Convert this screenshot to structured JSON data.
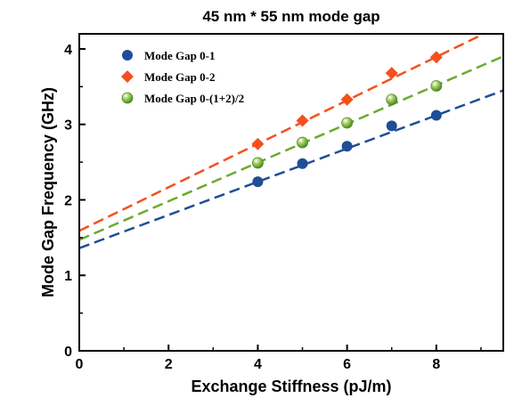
{
  "chart_data": {
    "type": "scatter",
    "title": "45 nm * 55 nm mode gap",
    "xlabel": "Exchange Stiffness (pJ/m)",
    "ylabel": "Mode Gap Frequency (GHz)",
    "xlim": [
      0,
      9.5
    ],
    "ylim": [
      0,
      4.2
    ],
    "xticks": [
      0,
      2,
      4,
      6,
      8
    ],
    "yticks": [
      0,
      1,
      2,
      3,
      4
    ],
    "grid": false,
    "legend_position": "top-left",
    "series": [
      {
        "name": "Mode Gap 0-1",
        "marker": "circle",
        "color": "#1f4e96",
        "x": [
          4,
          5,
          6,
          7,
          8
        ],
        "y": [
          2.24,
          2.48,
          2.71,
          2.98,
          3.12
        ],
        "fit": {
          "intercept": 1.36,
          "slope": 0.22
        }
      },
      {
        "name": "Mode Gap 0-2",
        "marker": "diamond",
        "color": "#f4501e",
        "x": [
          4,
          5,
          6,
          7,
          8
        ],
        "y": [
          2.74,
          3.05,
          3.33,
          3.68,
          3.89
        ],
        "fit": {
          "intercept": 1.59,
          "slope": 0.288
        }
      },
      {
        "name": "Mode Gap 0-(1+2)/2",
        "marker": "sphere",
        "color": "#6aaa2e",
        "x": [
          4,
          5,
          6,
          7,
          8
        ],
        "y": [
          2.49,
          2.76,
          3.02,
          3.33,
          3.51
        ],
        "fit": {
          "intercept": 1.47,
          "slope": 0.256
        }
      }
    ]
  }
}
